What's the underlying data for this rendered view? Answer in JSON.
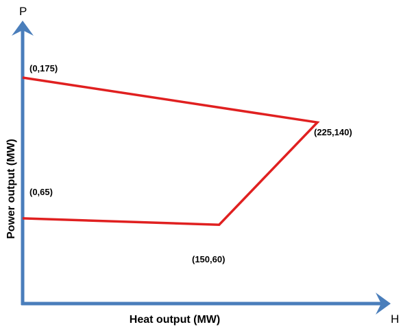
{
  "diagram": {
    "x_axis_letter": "H",
    "y_axis_letter": "P",
    "x_axis_title": "Heat output (MW)",
    "y_axis_title": "Power output (MW)",
    "axis_color": "#4a7ebb",
    "region_color": "#e02020",
    "points": [
      {
        "h": 0,
        "p": 175,
        "label": "(0,175)"
      },
      {
        "h": 225,
        "p": 140,
        "label": "(225,140)"
      },
      {
        "h": 150,
        "p": 60,
        "label": "(150,60)"
      },
      {
        "h": 0,
        "p": 65,
        "label": "(0,65)"
      }
    ]
  }
}
